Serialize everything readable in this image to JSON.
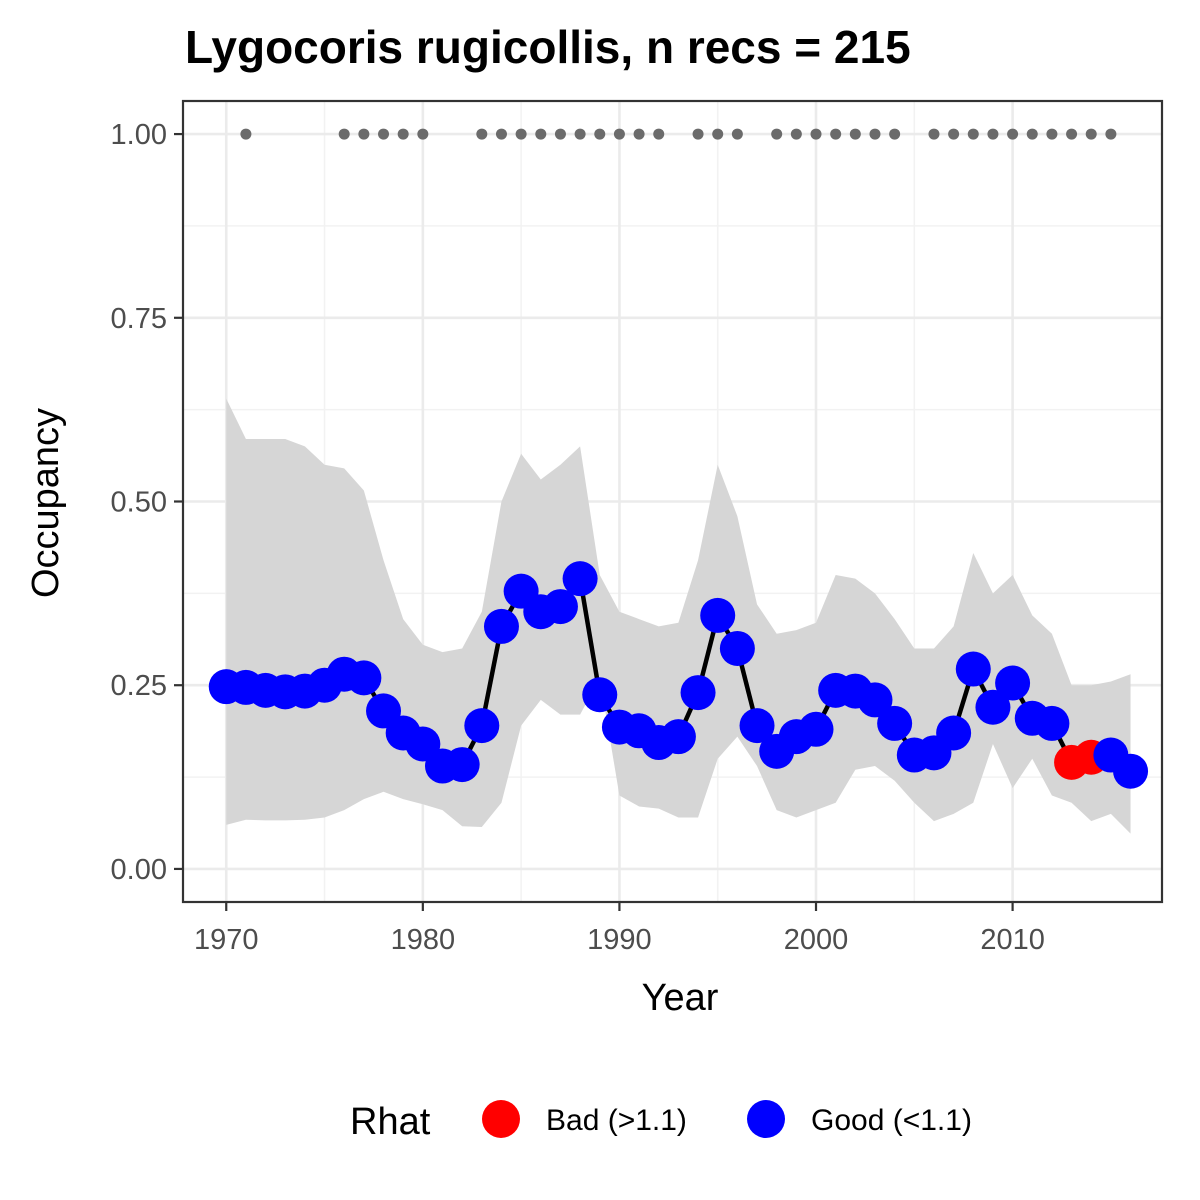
{
  "chart_data": {
    "type": "line",
    "title": "Lygocoris rugicollis, n recs = 215",
    "xlabel": "Year",
    "ylabel": "Occupancy",
    "xlim": [
      1967.8,
      2017.6
    ],
    "ylim": [
      -0.045,
      1.045
    ],
    "x_ticks": [
      "1970",
      "1980",
      "1990",
      "2000",
      "2010"
    ],
    "y_ticks": [
      "0.00",
      "0.25",
      "0.50",
      "0.75",
      "1.00"
    ],
    "grid": true,
    "legend": {
      "title": "Rhat",
      "position": "bottom",
      "entries": [
        {
          "label": "Bad (>1.1)",
          "color": "#ff0000"
        },
        {
          "label": "Good (<1.1)",
          "color": "#0000ff"
        }
      ]
    },
    "colors": {
      "good": "#0000ff",
      "bad": "#ff0000",
      "ribbon": "#d6d6d6",
      "record_points": "#6b6b6b",
      "line": "#000000"
    },
    "years": [
      1970,
      1971,
      1972,
      1973,
      1974,
      1975,
      1976,
      1977,
      1978,
      1979,
      1980,
      1981,
      1982,
      1983,
      1984,
      1985,
      1986,
      1987,
      1988,
      1989,
      1990,
      1991,
      1992,
      1993,
      1994,
      1995,
      1996,
      1997,
      1998,
      1999,
      2000,
      2001,
      2002,
      2003,
      2004,
      2005,
      2006,
      2007,
      2008,
      2009,
      2010,
      2011,
      2012,
      2013,
      2014,
      2015,
      2016
    ],
    "occupancy": [
      0.248,
      0.247,
      0.243,
      0.241,
      0.242,
      0.25,
      0.265,
      0.26,
      0.215,
      0.185,
      0.17,
      0.14,
      0.142,
      0.195,
      0.33,
      0.378,
      0.35,
      0.357,
      0.395,
      0.237,
      0.193,
      0.188,
      0.172,
      0.18,
      0.24,
      0.345,
      0.3,
      0.195,
      0.16,
      0.18,
      0.19,
      0.243,
      0.242,
      0.23,
      0.198,
      0.155,
      0.158,
      0.185,
      0.272,
      0.22,
      0.253,
      0.205,
      0.198,
      0.145,
      0.152,
      0.155,
      0.133
    ],
    "lower": [
      0.06,
      0.067,
      0.066,
      0.066,
      0.067,
      0.07,
      0.08,
      0.095,
      0.105,
      0.095,
      0.088,
      0.08,
      0.058,
      0.057,
      0.09,
      0.195,
      0.23,
      0.21,
      0.21,
      0.26,
      0.1,
      0.085,
      0.082,
      0.07,
      0.07,
      0.15,
      0.18,
      0.14,
      0.08,
      0.07,
      0.08,
      0.09,
      0.135,
      0.14,
      0.12,
      0.09,
      0.065,
      0.075,
      0.09,
      0.17,
      0.11,
      0.15,
      0.1,
      0.09,
      0.065,
      0.075,
      0.048
    ],
    "upper": [
      0.64,
      0.585,
      0.585,
      0.585,
      0.575,
      0.55,
      0.545,
      0.515,
      0.42,
      0.34,
      0.305,
      0.295,
      0.3,
      0.35,
      0.5,
      0.565,
      0.53,
      0.55,
      0.575,
      0.4,
      0.35,
      0.34,
      0.33,
      0.335,
      0.42,
      0.55,
      0.48,
      0.36,
      0.32,
      0.325,
      0.335,
      0.4,
      0.395,
      0.375,
      0.34,
      0.3,
      0.3,
      0.33,
      0.43,
      0.375,
      0.4,
      0.345,
      0.32,
      0.25,
      0.25,
      0.255,
      0.265
    ],
    "rhat": [
      "Good",
      "Good",
      "Good",
      "Good",
      "Good",
      "Good",
      "Good",
      "Good",
      "Good",
      "Good",
      "Good",
      "Good",
      "Good",
      "Good",
      "Good",
      "Good",
      "Good",
      "Good",
      "Good",
      "Good",
      "Good",
      "Good",
      "Good",
      "Good",
      "Good",
      "Good",
      "Good",
      "Good",
      "Good",
      "Good",
      "Good",
      "Good",
      "Good",
      "Good",
      "Good",
      "Good",
      "Good",
      "Good",
      "Good",
      "Good",
      "Good",
      "Good",
      "Good",
      "Bad",
      "Bad",
      "Good",
      "Good"
    ],
    "record_years": [
      1971,
      1976,
      1977,
      1978,
      1979,
      1980,
      1983,
      1984,
      1985,
      1986,
      1987,
      1988,
      1989,
      1990,
      1991,
      1992,
      1994,
      1995,
      1996,
      1998,
      1999,
      2000,
      2001,
      2002,
      2003,
      2004,
      2006,
      2007,
      2008,
      2009,
      2010,
      2011,
      2012,
      2013,
      2014,
      2015
    ],
    "record_value": 1.0
  }
}
